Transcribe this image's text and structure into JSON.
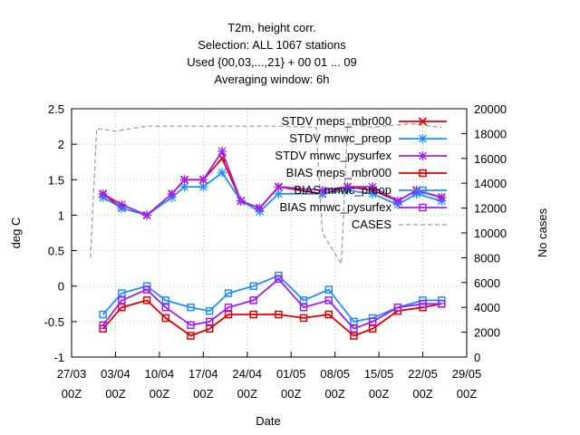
{
  "chart_data": {
    "type": "line",
    "title_lines": [
      "T2m, height corr.",
      "Selection: ALL   1067 stations",
      "Used {00,03,...,21} + 00 01 ... 09",
      "Averaging window:  6h"
    ],
    "xlabel": "Date",
    "ylabel": "deg C",
    "y2label": "No cases",
    "x_range": [
      "2021-03-27",
      "2021-05-29"
    ],
    "x_tick_labels": [
      [
        "27/03",
        "00Z"
      ],
      [
        "03/04",
        "00Z"
      ],
      [
        "10/04",
        "00Z"
      ],
      [
        "17/04",
        "00Z"
      ],
      [
        "24/04",
        "00Z"
      ],
      [
        "01/05",
        "00Z"
      ],
      [
        "08/05",
        "00Z"
      ],
      [
        "15/05",
        "00Z"
      ],
      [
        "22/05",
        "00Z"
      ],
      [
        "29/05",
        "00Z"
      ]
    ],
    "ylim": [
      -1,
      2.5
    ],
    "y_ticks": [
      "2.5",
      "2",
      "1.5",
      "1",
      "0.5",
      "0",
      "-0.5",
      "-1"
    ],
    "y2lim": [
      0,
      20000
    ],
    "y2_ticks": [
      "20000",
      "18000",
      "16000",
      "14000",
      "12000",
      "10000",
      "8000",
      "6000",
      "4000",
      "2000",
      "0"
    ],
    "legend_position": "top-right",
    "series": [
      {
        "name": "STDV meps_mbr000",
        "color": "#e00000",
        "marker": "x",
        "kind": "stdv",
        "x": [
          "2021-04-01",
          "2021-04-04",
          "2021-04-08",
          "2021-04-12",
          "2021-04-14",
          "2021-04-17",
          "2021-04-20",
          "2021-04-23",
          "2021-04-26",
          "2021-04-29",
          "2021-05-06",
          "2021-05-10",
          "2021-05-14",
          "2021-05-18",
          "2021-05-21",
          "2021-05-25"
        ],
        "y": [
          1.3,
          1.1,
          1.0,
          1.3,
          1.5,
          1.5,
          1.8,
          1.2,
          1.1,
          1.4,
          1.3,
          1.4,
          1.35,
          1.2,
          1.35,
          1.25
        ]
      },
      {
        "name": "STDV mnwc_preop",
        "color": "#1e90ff",
        "marker": "*",
        "kind": "stdv",
        "x": [
          "2021-04-01",
          "2021-04-04",
          "2021-04-08",
          "2021-04-12",
          "2021-04-14",
          "2021-04-17",
          "2021-04-20",
          "2021-04-23",
          "2021-04-26",
          "2021-04-29",
          "2021-05-06",
          "2021-05-10",
          "2021-05-14",
          "2021-05-18",
          "2021-05-21",
          "2021-05-25"
        ],
        "y": [
          1.25,
          1.1,
          1.0,
          1.25,
          1.4,
          1.4,
          1.6,
          1.2,
          1.05,
          1.3,
          1.3,
          1.35,
          1.3,
          1.15,
          1.3,
          1.2
        ]
      },
      {
        "name": "STDV mnwc_pysurfex",
        "color": "#a020f0",
        "marker": "*",
        "kind": "stdv",
        "x": [
          "2021-04-01",
          "2021-04-04",
          "2021-04-08",
          "2021-04-12",
          "2021-04-14",
          "2021-04-17",
          "2021-04-20",
          "2021-04-23",
          "2021-04-26",
          "2021-04-29",
          "2021-05-06",
          "2021-05-10",
          "2021-05-14",
          "2021-05-18",
          "2021-05-21",
          "2021-05-25"
        ],
        "y": [
          1.3,
          1.15,
          1.0,
          1.3,
          1.5,
          1.5,
          1.9,
          1.2,
          1.1,
          1.4,
          1.35,
          1.4,
          1.4,
          1.2,
          1.35,
          1.25
        ]
      },
      {
        "name": "BIAS meps_mbr000",
        "color": "#e00000",
        "marker": "square",
        "kind": "bias",
        "x": [
          "2021-04-01",
          "2021-04-04",
          "2021-04-08",
          "2021-04-11",
          "2021-04-15",
          "2021-04-18",
          "2021-04-21",
          "2021-04-25",
          "2021-04-29",
          "2021-05-03",
          "2021-05-07",
          "2021-05-11",
          "2021-05-14",
          "2021-05-18",
          "2021-05-22",
          "2021-05-25"
        ],
        "y": [
          -0.6,
          -0.3,
          -0.2,
          -0.45,
          -0.7,
          -0.6,
          -0.4,
          -0.4,
          -0.4,
          -0.45,
          -0.4,
          -0.7,
          -0.6,
          -0.35,
          -0.3,
          -0.25
        ]
      },
      {
        "name": "BIAS mnwc_preop",
        "color": "#1e90ff",
        "marker": "square",
        "kind": "bias",
        "x": [
          "2021-04-01",
          "2021-04-04",
          "2021-04-08",
          "2021-04-11",
          "2021-04-15",
          "2021-04-18",
          "2021-04-21",
          "2021-04-25",
          "2021-04-29",
          "2021-05-03",
          "2021-05-07",
          "2021-05-11",
          "2021-05-14",
          "2021-05-18",
          "2021-05-22",
          "2021-05-25"
        ],
        "y": [
          -0.4,
          -0.1,
          0.0,
          -0.2,
          -0.3,
          -0.35,
          -0.1,
          0.0,
          0.15,
          -0.2,
          -0.05,
          -0.5,
          -0.45,
          -0.3,
          -0.2,
          -0.2
        ]
      },
      {
        "name": "BIAS mnwc_pysurfex",
        "color": "#a020f0",
        "marker": "square",
        "kind": "bias",
        "x": [
          "2021-04-01",
          "2021-04-04",
          "2021-04-08",
          "2021-04-11",
          "2021-04-15",
          "2021-04-18",
          "2021-04-21",
          "2021-04-25",
          "2021-04-29",
          "2021-05-03",
          "2021-05-07",
          "2021-05-11",
          "2021-05-14",
          "2021-05-18",
          "2021-05-22",
          "2021-05-25"
        ],
        "y": [
          -0.55,
          -0.2,
          -0.05,
          -0.3,
          -0.55,
          -0.5,
          -0.3,
          -0.2,
          0.1,
          -0.3,
          -0.2,
          -0.6,
          -0.5,
          -0.3,
          -0.25,
          -0.25
        ]
      },
      {
        "name": "CASES",
        "color": "#999999",
        "marker": "none",
        "dashed": true,
        "axis": "y2",
        "x": [
          "2021-03-30",
          "2021-03-31",
          "2021-04-03",
          "2021-04-08",
          "2021-04-15",
          "2021-04-22",
          "2021-04-29",
          "2021-05-05",
          "2021-05-06",
          "2021-05-09",
          "2021-05-10",
          "2021-05-14",
          "2021-05-20",
          "2021-05-25"
        ],
        "y": [
          8000,
          18400,
          18200,
          18600,
          18600,
          18600,
          18600,
          18500,
          10000,
          7500,
          18800,
          18500,
          18800,
          18500
        ]
      }
    ]
  }
}
